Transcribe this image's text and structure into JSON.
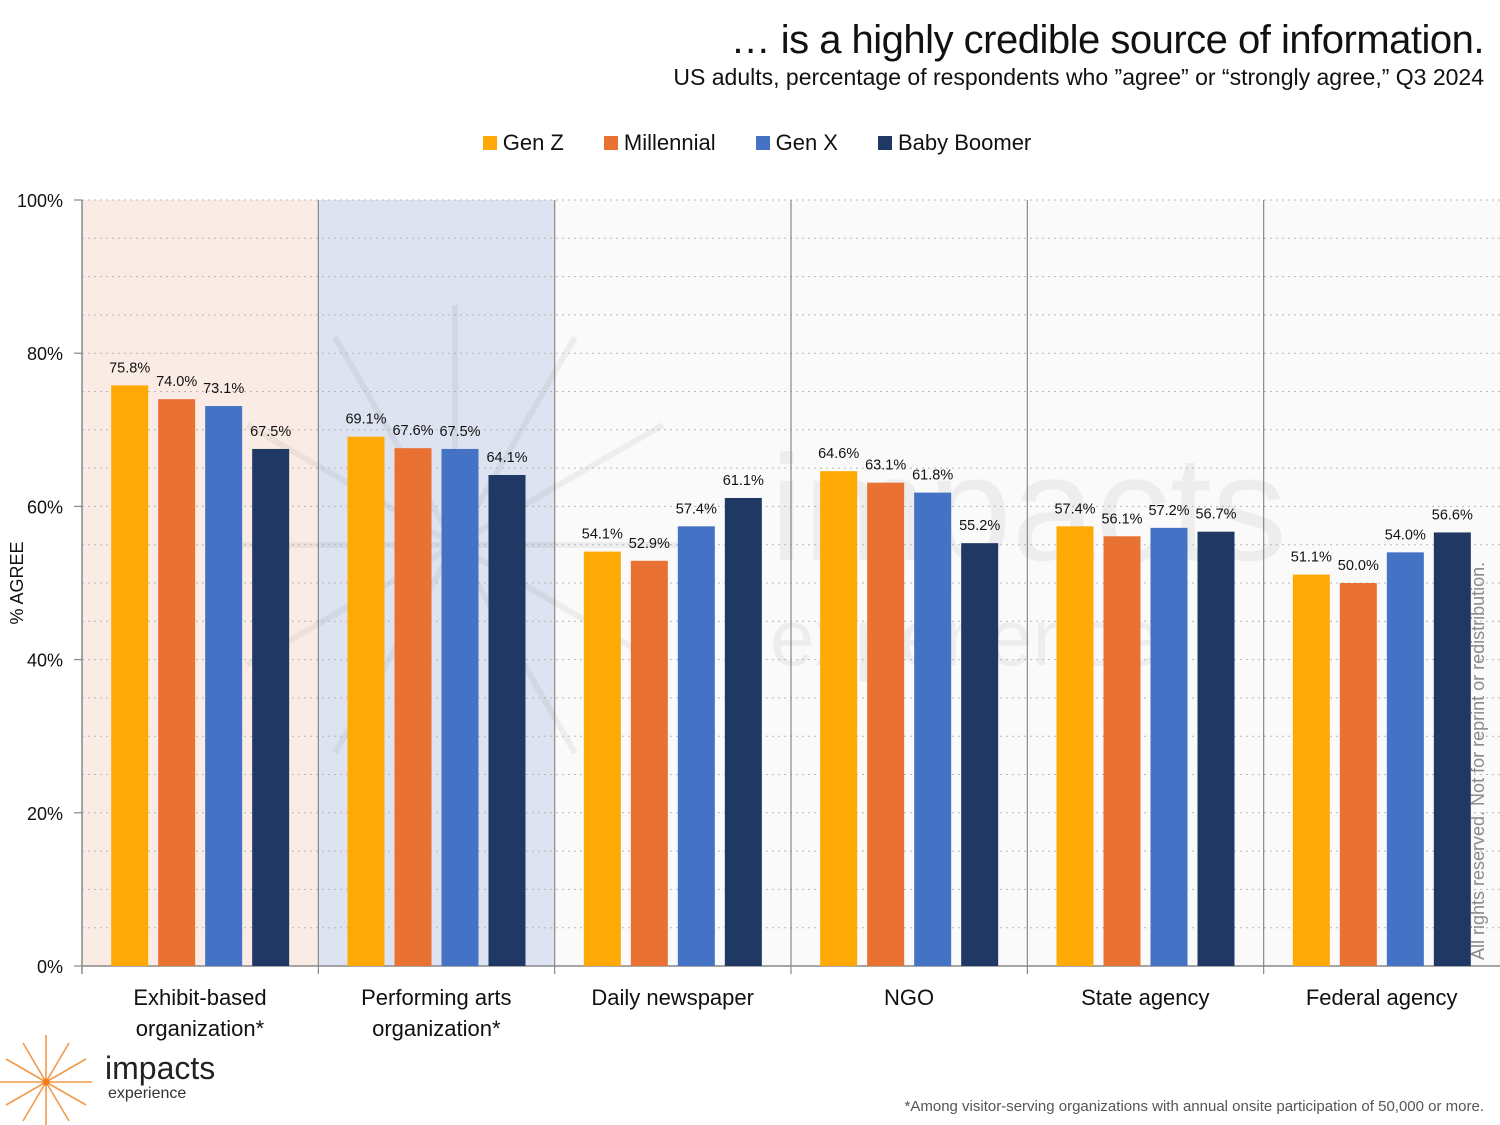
{
  "header": {
    "title": "… is a highly credible source of information.",
    "subtitle": "US adults, percentage of respondents who ”agree” or “strongly agree,” Q3 2024"
  },
  "legend": [
    {
      "label": "Gen Z",
      "color": "#FFA907"
    },
    {
      "label": "Millennial",
      "color": "#E97132"
    },
    {
      "label": "Gen X",
      "color": "#4472C4"
    },
    {
      "label": "Baby Boomer",
      "color": "#1F3864"
    }
  ],
  "chart_data": {
    "type": "bar",
    "title": "… is a highly credible source of information.",
    "subtitle": "US adults, percentage of respondents who ”agree” or “strongly agree,” Q3 2024",
    "xlabel": "",
    "ylabel": "% AGREE",
    "ylim": [
      0,
      100
    ],
    "yticks": [
      "0%",
      "20%",
      "40%",
      "60%",
      "80%",
      "100%"
    ],
    "grid": true,
    "legend_position": "top-center",
    "categories": [
      "Exhibit-based organization*",
      "Performing arts organization*",
      "Daily newspaper",
      "NGO",
      "State agency",
      "Federal agency"
    ],
    "category_lines": [
      [
        "Exhibit-based",
        "organization*"
      ],
      [
        "Performing arts",
        "organization*"
      ],
      [
        "Daily newspaper"
      ],
      [
        "NGO"
      ],
      [
        "State agency"
      ],
      [
        "Federal agency"
      ]
    ],
    "highlight_backgrounds": [
      "#FAECE4",
      "#DDE3F0",
      "#FAFAFA",
      "#FAFAFA",
      "#FAFAFA",
      "#FAFAFA"
    ],
    "series": [
      {
        "name": "Gen Z",
        "color": "#FFA907",
        "values": [
          75.8,
          69.1,
          54.1,
          64.6,
          57.4,
          51.1
        ],
        "labels": [
          "75.8%",
          "69.1%",
          "54.1%",
          "64.6%",
          "57.4%",
          "51.1%"
        ]
      },
      {
        "name": "Millennial",
        "color": "#E97132",
        "values": [
          74.0,
          67.6,
          52.9,
          63.1,
          56.1,
          50.0
        ],
        "labels": [
          "74.0%",
          "67.6%",
          "52.9%",
          "63.1%",
          "56.1%",
          "50.0%"
        ]
      },
      {
        "name": "Gen X",
        "color": "#4472C4",
        "values": [
          73.1,
          67.5,
          57.4,
          61.8,
          57.2,
          54.0
        ],
        "labels": [
          "73.1%",
          "67.5%",
          "57.4%",
          "61.8%",
          "57.2%",
          "54.0%"
        ]
      },
      {
        "name": "Baby Boomer",
        "color": "#1F3864",
        "values": [
          67.5,
          64.1,
          61.1,
          55.2,
          56.7,
          56.6
        ],
        "labels": [
          "67.5%",
          "64.1%",
          "61.1%",
          "55.2%",
          "56.7%",
          "56.6%"
        ]
      }
    ]
  },
  "watermark": {
    "side_text": "All rights reserved. Not for reprint or redistribution.",
    "center_word": "impacts",
    "center_sub": "experience"
  },
  "logo": {
    "name": "impacts",
    "sub": "experience"
  },
  "footnote": "*Among visitor-serving organizations with annual onsite participation of 50,000 or more."
}
